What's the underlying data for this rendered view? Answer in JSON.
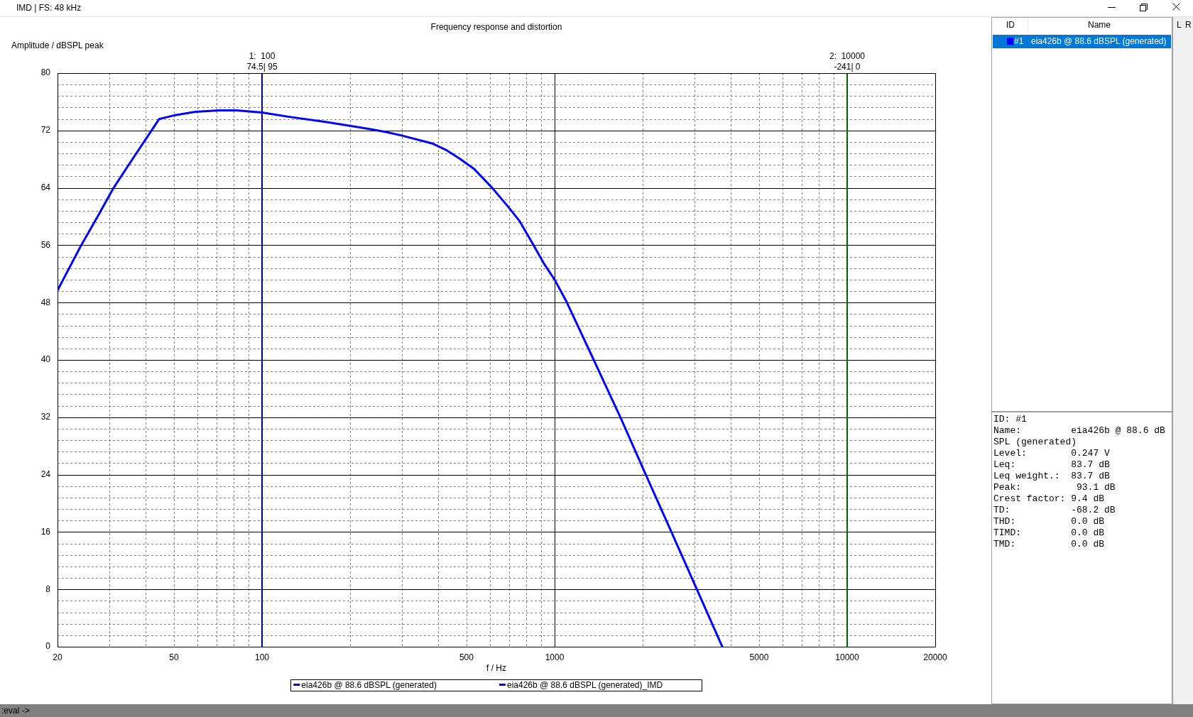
{
  "chart_data": {
    "type": "line",
    "title": "Frequency response and distortion",
    "xlabel": "f / Hz",
    "ylabel": "Amplitude / dBSPL peak",
    "x": [
      20,
      24.1,
      27.6,
      31.1,
      35.8,
      41.9,
      44.5,
      50,
      59.2,
      71.3,
      82,
      100,
      124,
      165,
      233,
      264,
      300,
      381,
      425,
      473,
      532,
      612,
      696,
      758,
      845,
      921,
      1000,
      1093,
      1361,
      1683,
      2055,
      2508,
      3064,
      3743
    ],
    "series": [
      {
        "name": "eia426b @ 88.6 dBSPL (generated)",
        "color": "#0000ff",
        "values": [
          49.7,
          56.0,
          60.2,
          64.0,
          67.8,
          72.0,
          73.6,
          74.1,
          74.6,
          74.8,
          74.8,
          74.5,
          73.9,
          73.2,
          72.2,
          71.8,
          71.3,
          70.2,
          69.3,
          68.1,
          66.6,
          64.0,
          61.3,
          59.4,
          56.1,
          53.4,
          51.2,
          48.3,
          40.0,
          31.9,
          23.9,
          16.0,
          8.0,
          0
        ]
      },
      {
        "name": "eia426b @ 88.6 dBSPL (generated)_IMD",
        "color": "#0000ff",
        "values": [
          null,
          null,
          null,
          null,
          null,
          null,
          null,
          null,
          null,
          null,
          null,
          null,
          null,
          null,
          null,
          null,
          null,
          null,
          null,
          null,
          null,
          null,
          null,
          null,
          null,
          null,
          null,
          null,
          null,
          null,
          null,
          null,
          null,
          null
        ]
      }
    ],
    "xlim": [
      20,
      20000
    ],
    "ylim": [
      0,
      80
    ],
    "xticks": [
      20,
      {
        "value": 30,
        "label": null
      },
      {
        "value": 40,
        "label": null
      },
      50,
      {
        "value": 60,
        "label": null
      },
      {
        "value": 70,
        "label": null
      },
      {
        "value": 80,
        "label": null
      },
      {
        "value": 90,
        "label": null
      },
      100,
      {
        "value": 200,
        "label": null
      },
      {
        "value": 300,
        "label": null
      },
      {
        "value": 400,
        "label": null
      },
      500,
      {
        "value": 600,
        "label": null
      },
      {
        "value": 700,
        "label": null
      },
      {
        "value": 800,
        "label": null
      },
      {
        "value": 900,
        "label": null
      },
      1000,
      {
        "value": 2000,
        "label": null
      },
      {
        "value": 3000,
        "label": null
      },
      {
        "value": 4000,
        "label": null
      },
      5000,
      {
        "value": 6000,
        "label": null
      },
      {
        "value": 7000,
        "label": null
      },
      {
        "value": 8000,
        "label": null
      },
      {
        "value": 9000,
        "label": null
      },
      10000,
      20000
    ],
    "yticks": [
      0,
      {
        "value": 1.6,
        "label": null
      },
      {
        "value": 3.2,
        "label": null
      },
      {
        "value": 4.8,
        "label": null
      },
      {
        "value": 6.4,
        "label": null
      },
      8,
      {
        "value": 9.6,
        "label": null
      },
      {
        "value": 11.2,
        "label": null
      },
      {
        "value": 12.8,
        "label": null
      },
      {
        "value": 14.4,
        "label": null
      },
      16,
      {
        "value": 17.6,
        "label": null
      },
      {
        "value": 19.2,
        "label": null
      },
      {
        "value": 20.8,
        "label": null
      },
      {
        "value": 22.4,
        "label": null
      },
      24,
      {
        "value": 25.6,
        "label": null
      },
      {
        "value": 27.2,
        "label": null
      },
      {
        "value": 28.8,
        "label": null
      },
      {
        "value": 30.4,
        "label": null
      },
      32,
      {
        "value": 33.6,
        "label": null
      },
      {
        "value": 35.2,
        "label": null
      },
      {
        "value": 36.8,
        "label": null
      },
      {
        "value": 38.4,
        "label": null
      },
      40,
      {
        "value": 41.6,
        "label": null
      },
      {
        "value": 43.2,
        "label": null
      },
      {
        "value": 44.8,
        "label": null
      },
      {
        "value": 46.4,
        "label": null
      },
      48,
      {
        "value": 49.6,
        "label": null
      },
      {
        "value": 51.2,
        "label": null
      },
      {
        "value": 52.8,
        "label": null
      },
      {
        "value": 54.4,
        "label": null
      },
      56,
      {
        "value": 57.6,
        "label": null
      },
      {
        "value": 59.2,
        "label": null
      },
      {
        "value": 60.8,
        "label": null
      },
      {
        "value": 62.4,
        "label": null
      },
      64,
      {
        "value": 65.6,
        "label": null
      },
      {
        "value": 67.2,
        "label": null
      },
      {
        "value": 68.8,
        "label": null
      },
      {
        "value": 70.4,
        "label": null
      },
      72,
      {
        "value": 73.6,
        "label": null
      },
      {
        "value": 75.2,
        "label": null
      },
      {
        "value": 76.8,
        "label": null
      },
      {
        "value": 78.4,
        "label": null
      },
      80
    ],
    "log": "x",
    "grid": true,
    "legend": "bottom",
    "marker": "none",
    "line_style": "solid",
    "ref_lines": [
      {
        "axis": "x",
        "value": 100,
        "label": "1:  100\n74.5| 95",
        "color": "#00008b"
      },
      {
        "axis": "x",
        "value": 10000,
        "label": "2:  10000\n-241| 0",
        "color": "#006400"
      }
    ],
    "annotations": [
      "IMD | FS: 48 kHz",
      "ID",
      "Name",
      "#1",
      "eia426b @ 88.6 dBSPL (generated)",
      "ID: #1\nName:         eia426b @ 88.6 dB\nSPL (generated)\nLevel:        0.247 V\nLeq:          83.7 dB\nLeq weight.:  83.7 dB\nPeak:          93.1 dB\nCrest factor: 9.4 dB\nTD:           -68.2 dB\nTHD:          0.0 dB\nTIMD:         0.0 dB\nTMD:          0.0 dB",
      "L",
      "R",
      ":eval ->"
    ]
  }
}
